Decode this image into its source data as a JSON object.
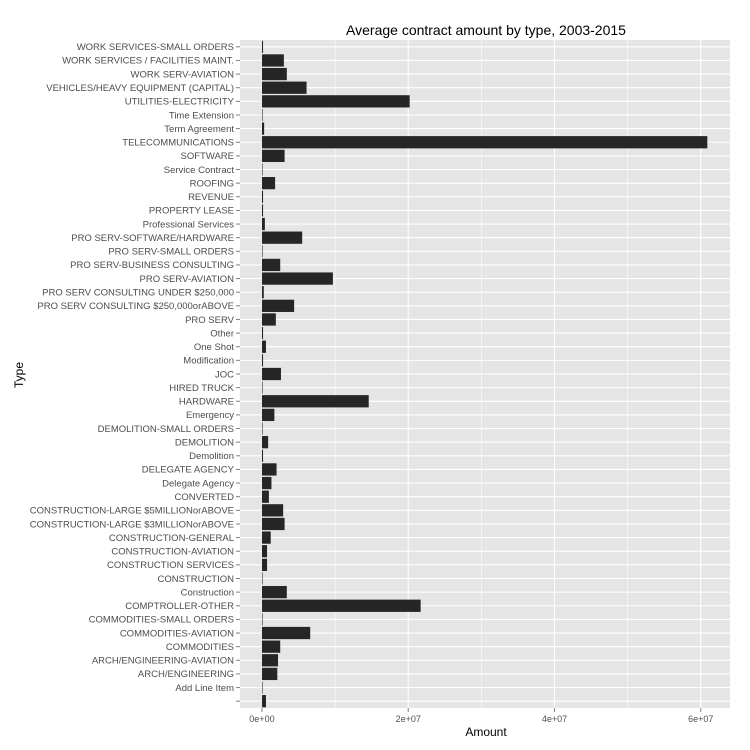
{
  "chart_data": {
    "type": "bar",
    "orientation": "horizontal",
    "title": "Average contract amount by type, 2003-2015",
    "xlabel": "Amount",
    "ylabel": "Type",
    "xlim": [
      -3000000,
      64000000
    ],
    "xticks": [
      0,
      20000000,
      40000000,
      60000000
    ],
    "xtick_labels": [
      "0e+00",
      "2e+07",
      "4e+07",
      "6e+07"
    ],
    "grid": true,
    "bar_color": "#262626",
    "panel_color": "#e5e5e5",
    "gridline_color": "#ffffff",
    "categories": [
      "WORK SERVICES-SMALL ORDERS",
      "WORK SERVICES / FACILITIES MAINT.",
      "WORK SERV-AVIATION",
      "VEHICLES/HEAVY EQUIPMENT (CAPITAL)",
      "UTILITIES-ELECTRICITY",
      "Time Extension",
      "Term Agreement",
      "TELECOMMUNICATIONS",
      "SOFTWARE",
      "Service Contract",
      "ROOFING",
      "REVENUE",
      "PROPERTY LEASE",
      "Professional Services",
      "PRO SERV-SOFTWARE/HARDWARE",
      "PRO SERV-SMALL ORDERS",
      "PRO SERV-BUSINESS CONSULTING",
      "PRO SERV-AVIATION",
      "PRO SERV CONSULTING UNDER $250,000",
      "PRO SERV CONSULTING $250,000orABOVE",
      "PRO SERV",
      "Other",
      "One Shot",
      "Modification",
      "JOC",
      "HIRED TRUCK",
      "HARDWARE",
      "Emergency",
      "DEMOLITION-SMALL ORDERS",
      "DEMOLITION",
      "Demolition",
      "DELEGATE AGENCY",
      "Delegate Agency",
      "CONVERTED",
      "CONSTRUCTION-LARGE $5MILLIONorABOVE",
      "CONSTRUCTION-LARGE $3MILLIONorABOVE",
      "CONSTRUCTION-GENERAL",
      "CONSTRUCTION-AVIATION",
      "CONSTRUCTION SERVICES",
      "CONSTRUCTION",
      "Construction",
      "COMPTROLLER-OTHER",
      "COMMODITIES-SMALL ORDERS",
      "COMMODITIES-AVIATION",
      "COMMODITIES",
      "ARCH/ENGINEERING-AVIATION",
      "ARCH/ENGINEERING",
      "Add Line Item",
      ""
    ],
    "values": [
      150000,
      3000000,
      3400000,
      6100000,
      20200000,
      50000,
      300000,
      60900000,
      3100000,
      20000,
      1800000,
      150000,
      150000,
      400000,
      5500000,
      50000,
      2500000,
      9700000,
      250000,
      4400000,
      1900000,
      150000,
      550000,
      150000,
      2600000,
      20000,
      14600000,
      1700000,
      50000,
      850000,
      150000,
      2000000,
      1300000,
      950000,
      2900000,
      3100000,
      1200000,
      700000,
      700000,
      30000,
      3400000,
      21700000,
      80000,
      6600000,
      2500000,
      2200000,
      2100000,
      20000,
      550000
    ]
  }
}
